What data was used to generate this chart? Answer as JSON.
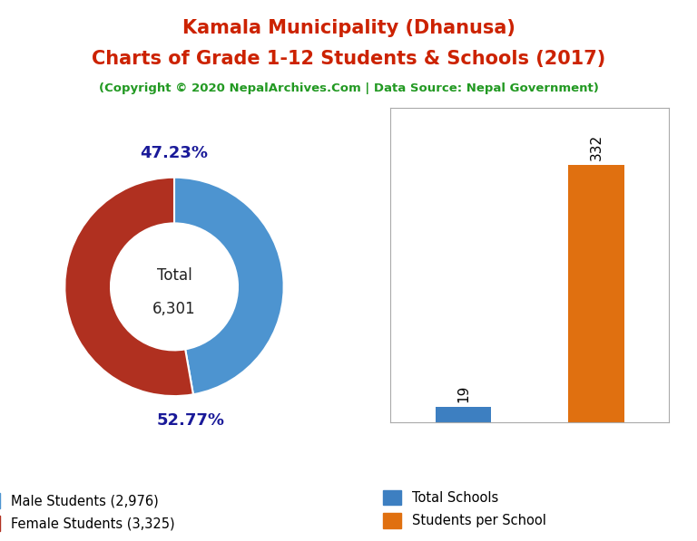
{
  "title_line1": "Kamala Municipality (Dhanusa)",
  "title_line2": "Charts of Grade 1-12 Students & Schools (2017)",
  "subtitle": "(Copyright © 2020 NepalArchives.Com | Data Source: Nepal Government)",
  "title_color": "#cc2200",
  "subtitle_color": "#229922",
  "male_students": 2976,
  "female_students": 3325,
  "total_students": 6301,
  "male_pct": 47.23,
  "female_pct": 52.77,
  "male_color": "#4d94d0",
  "female_color": "#b03020",
  "total_schools": 19,
  "students_per_school": 332,
  "bar_blue": "#3d7fc1",
  "bar_orange": "#e07010",
  "background_color": "#ffffff",
  "pct_label_color": "#1a1a99",
  "center_text_color": "#222222"
}
